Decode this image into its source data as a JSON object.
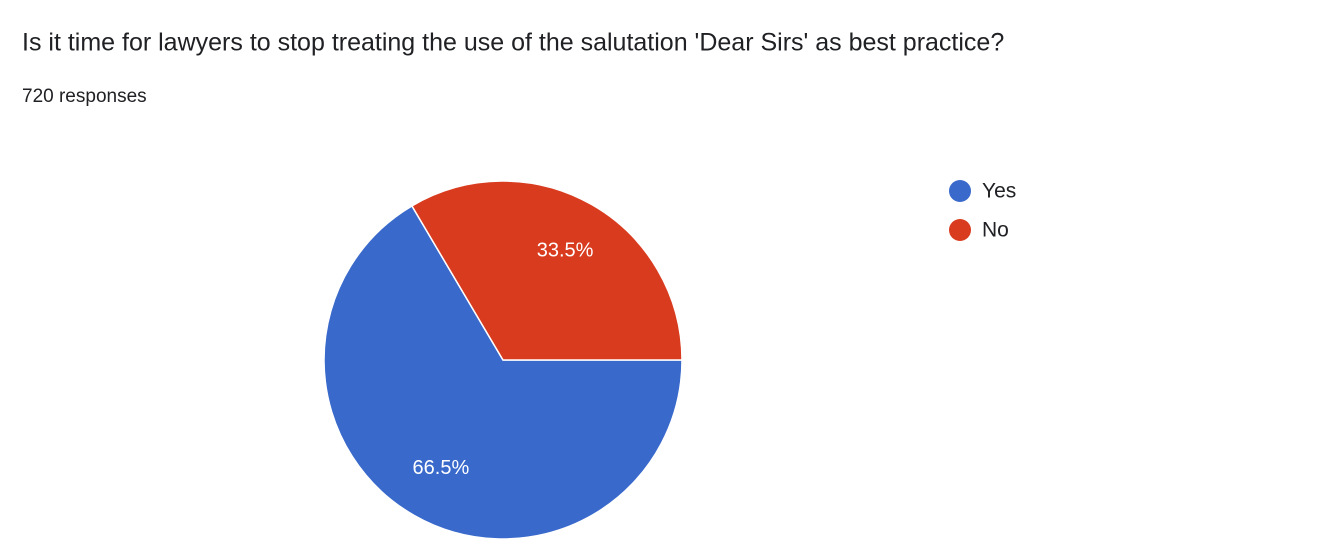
{
  "chart_data": {
    "type": "pie",
    "title": "Is it time for lawyers to stop treating the use of the salutation 'Dear Sirs' as best practice?",
    "subtitle": "720 responses",
    "categories": [
      "Yes",
      "No"
    ],
    "values": [
      66.5,
      33.5
    ],
    "value_labels": [
      "66.5%",
      "33.5%"
    ],
    "colors": [
      "#3869cb",
      "#d93b1f"
    ],
    "legend": "right"
  }
}
